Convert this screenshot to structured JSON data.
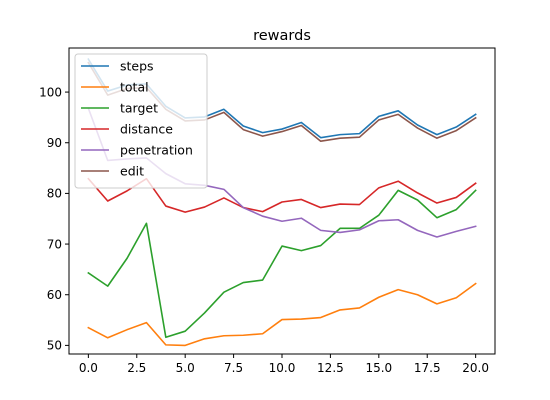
{
  "chart_data": {
    "type": "line",
    "title": "rewards",
    "xlabel": "",
    "ylabel": "",
    "xlim": [
      -1.0,
      21.0
    ],
    "ylim": [
      48.3,
      108.7
    ],
    "xticks": [
      0.0,
      2.5,
      5.0,
      7.5,
      10.0,
      12.5,
      15.0,
      17.5,
      20.0
    ],
    "xtick_labels": [
      "0.0",
      "2.5",
      "5.0",
      "7.5",
      "10.0",
      "12.5",
      "15.0",
      "17.5",
      "20.0"
    ],
    "yticks": [
      50,
      60,
      70,
      80,
      90,
      100
    ],
    "ytick_labels": [
      "50",
      "60",
      "70",
      "80",
      "90",
      "100"
    ],
    "grid": false,
    "legend": "top-left",
    "x": [
      0,
      1,
      2,
      3,
      4,
      5,
      6,
      7,
      8,
      9,
      10,
      11,
      12,
      13,
      14,
      15,
      16,
      17,
      18,
      19,
      20
    ],
    "series": [
      {
        "name": "steps",
        "color": "#1f77b4",
        "values": [
          106.5,
          100.2,
          101.4,
          101.6,
          97.2,
          94.9,
          95.1,
          96.6,
          93.3,
          92.0,
          92.7,
          94.0,
          91.0,
          91.6,
          91.8,
          95.2,
          96.3,
          93.5,
          91.6,
          93.1,
          95.6
        ]
      },
      {
        "name": "total",
        "color": "#ff7f0e",
        "values": [
          53.5,
          51.5,
          53.1,
          54.5,
          50.1,
          50.0,
          51.3,
          51.9,
          52.0,
          52.3,
          55.1,
          55.2,
          55.5,
          57.0,
          57.4,
          59.5,
          61.0,
          60.0,
          58.2,
          59.4,
          62.2
        ]
      },
      {
        "name": "target",
        "color": "#2ca02c",
        "values": [
          64.3,
          61.7,
          67.2,
          74.1,
          51.6,
          52.8,
          56.4,
          60.5,
          62.4,
          62.9,
          69.6,
          68.7,
          69.7,
          73.1,
          73.1,
          75.7,
          80.6,
          78.7,
          75.2,
          76.8,
          80.6
        ]
      },
      {
        "name": "distance",
        "color": "#d62728",
        "values": [
          82.9,
          78.5,
          80.5,
          82.9,
          77.5,
          76.3,
          77.3,
          79.1,
          77.2,
          76.4,
          78.3,
          78.8,
          77.2,
          77.9,
          77.8,
          81.1,
          82.4,
          80.1,
          78.1,
          79.2,
          82.0
        ]
      },
      {
        "name": "penetration",
        "color": "#9467bd",
        "values": [
          96.8,
          86.5,
          86.8,
          87.0,
          83.9,
          81.9,
          81.6,
          80.8,
          77.2,
          75.5,
          74.5,
          75.1,
          72.7,
          72.3,
          72.8,
          74.6,
          74.8,
          72.7,
          71.4,
          72.5,
          73.5
        ]
      },
      {
        "name": "edit",
        "color": "#8c564b",
        "values": [
          105.8,
          99.4,
          100.7,
          100.9,
          96.6,
          94.3,
          94.5,
          96.0,
          92.6,
          91.3,
          92.2,
          93.4,
          90.3,
          90.9,
          91.1,
          94.5,
          95.6,
          92.9,
          90.9,
          92.4,
          94.9
        ]
      }
    ]
  }
}
